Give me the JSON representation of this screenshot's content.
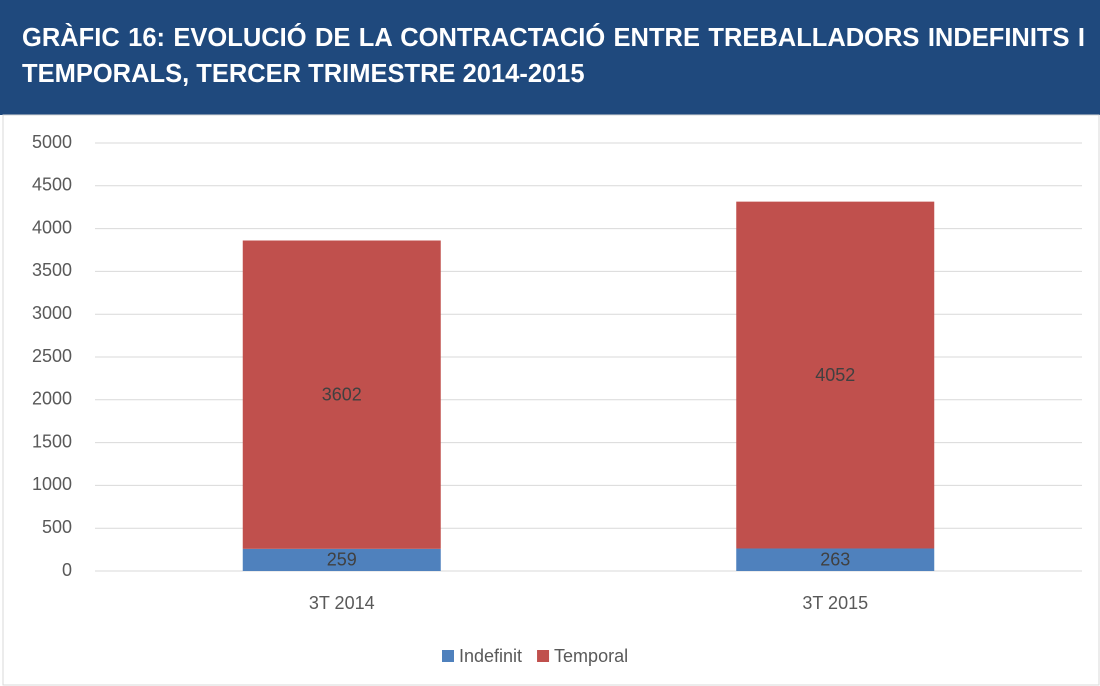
{
  "chart_data": {
    "type": "stacked_bar",
    "title": "GRÀFIC 16: EVOLUCIÓ DE LA CONTRACTACIÓ ENTRE TREBALLADORS INDEFINITS I TEMPORALS, TERCER TRIMESTRE 2014-2015",
    "categories": [
      "3T 2014",
      "3T 2015"
    ],
    "series": [
      {
        "name": "Indefinit",
        "color": "#4f81bd",
        "values": [
          259,
          263
        ]
      },
      {
        "name": "Temporal",
        "color": "#c0504d",
        "values": [
          3602,
          4052
        ]
      }
    ],
    "ylim": [
      0,
      5000
    ],
    "yticks": [
      0,
      500,
      1000,
      1500,
      2000,
      2500,
      3000,
      3500,
      4000,
      4500,
      5000
    ],
    "grid": true,
    "legend": "bottom"
  }
}
